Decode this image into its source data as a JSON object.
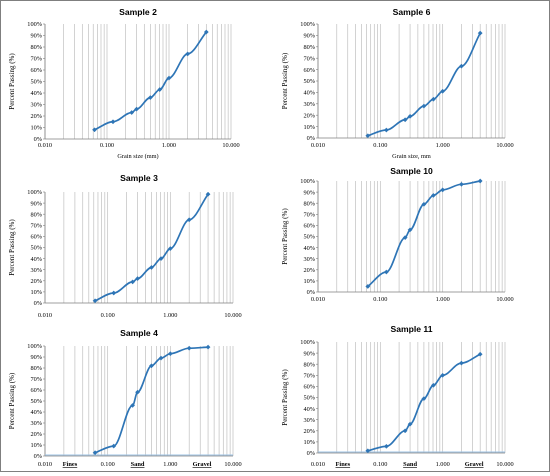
{
  "figure": {
    "border_color": "#7f7f7f",
    "series_color": "#2e75b6",
    "grid_color": "#bfbfbf"
  },
  "chart_data": [
    {
      "type": "line",
      "title": "Sample 2",
      "ylabel": "Percent Passing (%)",
      "xlabel": "Grain size (mm)",
      "xscale": "log",
      "xlim": [
        0.01,
        10
      ],
      "ylim": [
        0,
        100
      ],
      "grid": "vertical log minor lines",
      "xtick_labels": [
        "0.010",
        "0.100",
        "1.000",
        "10.000"
      ],
      "ytick_labels": [
        "0%",
        "10%",
        "20%",
        "30%",
        "40%",
        "50%",
        "60%",
        "70%",
        "80%",
        "90%",
        "100%"
      ],
      "zone_labels": [],
      "x": [
        0.063,
        0.125,
        0.25,
        0.3,
        0.5,
        0.71,
        1.0,
        2.0,
        4.0
      ],
      "y": [
        8,
        15,
        23,
        26,
        36,
        43,
        53,
        74,
        93
      ]
    },
    {
      "type": "line",
      "title": "Sample 6",
      "ylabel": "Percent Passing (%)",
      "xlabel": "Grain size, mm",
      "xscale": "log",
      "xlim": [
        0.01,
        10
      ],
      "ylim": [
        0,
        100
      ],
      "grid": "vertical log minor lines",
      "xtick_labels": [
        "0.010",
        "0.100",
        "1.000",
        "10.000"
      ],
      "ytick_labels": [
        "0%",
        "10%",
        "20%",
        "30%",
        "40%",
        "50%",
        "60%",
        "70%",
        "80%",
        "90%",
        "100%"
      ],
      "zone_labels": [],
      "x": [
        0.063,
        0.125,
        0.25,
        0.3,
        0.5,
        0.71,
        1.0,
        2.0,
        4.0
      ],
      "y": [
        2,
        7,
        16,
        19,
        28,
        34,
        41,
        63,
        92
      ]
    },
    {
      "type": "line",
      "title": "Sample 3",
      "ylabel": "Percent Passing (%)",
      "xlabel": "",
      "xscale": "log",
      "xlim": [
        0.01,
        10
      ],
      "ylim": [
        0,
        100
      ],
      "grid": "vertical log minor lines",
      "xtick_labels": [
        "0.010",
        "0.100",
        "1.000",
        "10.000"
      ],
      "ytick_labels": [
        "0%",
        "10%",
        "20%",
        "30%",
        "40%",
        "50%",
        "60%",
        "70%",
        "80%",
        "90%",
        "100%"
      ],
      "zone_labels": [],
      "x": [
        0.063,
        0.125,
        0.25,
        0.3,
        0.5,
        0.71,
        1.0,
        2.0,
        4.0
      ],
      "y": [
        2,
        9,
        19,
        22,
        32,
        40,
        49,
        75,
        98
      ]
    },
    {
      "type": "line",
      "title": "Sample 10",
      "ylabel": "Percent Passing (%)",
      "xlabel": "",
      "xscale": "log",
      "xlim": [
        0.01,
        10
      ],
      "ylim": [
        0,
        100
      ],
      "grid": "vertical log minor lines",
      "xtick_labels": [
        "0.010",
        "0.100",
        "1.000",
        "10.000"
      ],
      "ytick_labels": [
        "0%",
        "10%",
        "20%",
        "30%",
        "40%",
        "50%",
        "60%",
        "70%",
        "80%",
        "90%",
        "100%"
      ],
      "zone_labels": [],
      "x": [
        0.063,
        0.125,
        0.25,
        0.3,
        0.5,
        0.71,
        1.0,
        2.0,
        4.0
      ],
      "y": [
        5,
        18,
        49,
        56,
        79,
        87,
        92,
        97,
        100
      ]
    },
    {
      "type": "line",
      "title": "Sample 4",
      "ylabel": "Percent Passing (%)",
      "xlabel": "",
      "xscale": "log",
      "xlim": [
        0.01,
        10
      ],
      "ylim": [
        0,
        100
      ],
      "grid": "vertical log minor lines",
      "xtick_labels": [
        "0.010",
        "0.100",
        "1.000",
        "10.000"
      ],
      "ytick_labels": [
        "0%",
        "10%",
        "20%",
        "30%",
        "40%",
        "50%",
        "60%",
        "70%",
        "80%",
        "90%",
        "100%"
      ],
      "zone_labels": [
        {
          "text": "Fines",
          "x": 0.025
        },
        {
          "text": "Sand",
          "x": 0.3
        },
        {
          "text": "Gravel",
          "x": 3.2
        }
      ],
      "x": [
        0.063,
        0.125,
        0.25,
        0.3,
        0.5,
        0.71,
        1.0,
        2.0,
        4.0
      ],
      "y": [
        3,
        9,
        46,
        58,
        82,
        89,
        93,
        98,
        99
      ]
    },
    {
      "type": "line",
      "title": "Sample 11",
      "ylabel": "Percent Passing (%)",
      "xlabel": "",
      "xscale": "log",
      "xlim": [
        0.01,
        10
      ],
      "ylim": [
        0,
        100
      ],
      "grid": "vertical log minor lines",
      "xtick_labels": [
        "0.010",
        "0.100",
        "1.000",
        "10.000"
      ],
      "ytick_labels": [
        "0%",
        "10%",
        "20%",
        "30%",
        "40%",
        "50%",
        "60%",
        "70%",
        "80%",
        "90%",
        "100%"
      ],
      "zone_labels": [
        {
          "text": "Fines",
          "x": 0.025
        },
        {
          "text": "Sand",
          "x": 0.3
        },
        {
          "text": "Gravel",
          "x": 3.2
        }
      ],
      "x": [
        0.063,
        0.125,
        0.25,
        0.3,
        0.5,
        0.71,
        1.0,
        2.0,
        4.0
      ],
      "y": [
        2,
        6,
        20,
        26,
        49,
        61,
        70,
        81,
        89
      ]
    }
  ]
}
